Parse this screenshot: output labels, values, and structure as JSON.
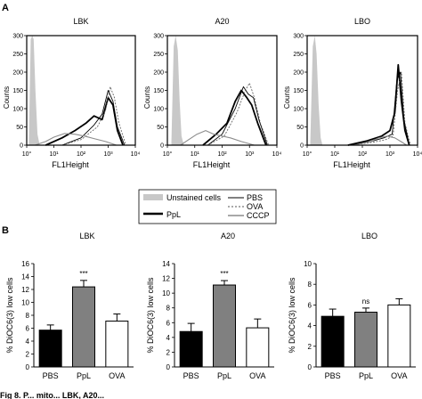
{
  "panels": [
    {
      "letter": "A"
    },
    {
      "letter": "B"
    }
  ],
  "legend": {
    "unstained": "Unstained cells",
    "ppl": "PpL",
    "pbs": "PBS",
    "ova": "OVA",
    "cccp": "CCCP"
  },
  "caption": "Fig 8. P... mito... LBK, A20...",
  "chart_data": [
    {
      "type": "line",
      "panel": "A",
      "title": "LBK",
      "xlabel": "FL1Height",
      "ylabel": "Counts",
      "xscale": "log",
      "xlim": [
        1,
        10000
      ],
      "ylim": [
        0,
        300
      ],
      "x_ticks": [
        "10°",
        "10¹",
        "10²",
        "10³",
        "10⁴"
      ],
      "y_ticks": [
        "0",
        "50",
        "100",
        "150",
        "200",
        "250",
        "300"
      ],
      "series": [
        {
          "name": "Unstained cells",
          "style": "filled-gray",
          "x": [
            1.2,
            1.4,
            1.6,
            1.8,
            2.1,
            2.5,
            3
          ],
          "y": [
            5,
            290,
            300,
            290,
            150,
            30,
            0
          ]
        },
        {
          "name": "PpL",
          "style": "thick-black",
          "x": [
            5,
            20,
            60,
            150,
            300,
            600,
            1000,
            1500,
            2200,
            3500
          ],
          "y": [
            0,
            20,
            40,
            60,
            80,
            70,
            130,
            110,
            40,
            0
          ]
        },
        {
          "name": "PBS",
          "style": "thin-black",
          "x": [
            20,
            100,
            300,
            600,
            1000,
            1500,
            2200,
            4000
          ],
          "y": [
            0,
            20,
            55,
            85,
            150,
            120,
            50,
            0
          ]
        },
        {
          "name": "OVA",
          "style": "dashed",
          "x": [
            20,
            100,
            400,
            800,
            1200,
            1700,
            2500,
            4500
          ],
          "y": [
            0,
            15,
            50,
            95,
            160,
            130,
            60,
            0
          ]
        },
        {
          "name": "CCCP",
          "style": "thin-gray",
          "x": [
            2,
            5,
            10,
            25,
            60,
            150,
            300,
            800,
            2000
          ],
          "y": [
            0,
            10,
            22,
            32,
            30,
            24,
            18,
            10,
            0
          ]
        }
      ]
    },
    {
      "type": "line",
      "panel": "A",
      "title": "A20",
      "xlabel": "FL1Height",
      "ylabel": "Counts",
      "xscale": "log",
      "xlim": [
        1,
        10000
      ],
      "ylim": [
        0,
        300
      ],
      "x_ticks": [
        "10°",
        "10¹",
        "10²",
        "10³",
        "10⁴"
      ],
      "y_ticks": [
        "0",
        "50",
        "100",
        "150",
        "200",
        "250",
        "300"
      ],
      "series": [
        {
          "name": "Unstained cells",
          "style": "filled-gray",
          "x": [
            1.4,
            1.7,
            2,
            2.4,
            2.8,
            3.3,
            4
          ],
          "y": [
            5,
            270,
            300,
            260,
            120,
            25,
            0
          ]
        },
        {
          "name": "PpL",
          "style": "thick-black",
          "x": [
            20,
            60,
            150,
            300,
            500,
            800,
            1200,
            2000,
            4000
          ],
          "y": [
            0,
            30,
            60,
            120,
            150,
            130,
            110,
            60,
            0
          ]
        },
        {
          "name": "PBS",
          "style": "thin-black",
          "x": [
            30,
            100,
            300,
            600,
            900,
            1400,
            2200,
            4500
          ],
          "y": [
            0,
            30,
            100,
            160,
            140,
            130,
            70,
            0
          ]
        },
        {
          "name": "OVA",
          "style": "dashed",
          "x": [
            30,
            120,
            350,
            700,
            1000,
            1500,
            2500,
            5000
          ],
          "y": [
            0,
            25,
            90,
            150,
            170,
            130,
            60,
            0
          ]
        },
        {
          "name": "CCCP",
          "style": "thin-gray",
          "x": [
            3,
            6,
            12,
            25,
            50,
            100,
            200,
            500,
            1500
          ],
          "y": [
            0,
            15,
            30,
            40,
            30,
            25,
            20,
            10,
            0
          ]
        }
      ]
    },
    {
      "type": "line",
      "panel": "A",
      "title": "LBO",
      "xlabel": "FL1Height",
      "ylabel": "Counts",
      "xscale": "log",
      "xlim": [
        1,
        10000
      ],
      "ylim": [
        0,
        300
      ],
      "x_ticks": [
        "10°",
        "10¹",
        "10²",
        "10³",
        "10⁴"
      ],
      "y_ticks": [
        "0",
        "50",
        "100",
        "150",
        "200",
        "250",
        "300"
      ],
      "series": [
        {
          "name": "Unstained cells",
          "style": "filled-gray",
          "x": [
            1.3,
            1.6,
            1.9,
            2.2,
            2.6,
            3.1,
            3.6
          ],
          "y": [
            5,
            270,
            300,
            250,
            110,
            20,
            0
          ]
        },
        {
          "name": "PpL",
          "style": "thick-black",
          "x": [
            30,
            150,
            500,
            1000,
            1500,
            2000,
            2600,
            3500,
            5000
          ],
          "y": [
            0,
            12,
            25,
            40,
            90,
            220,
            120,
            40,
            0
          ]
        },
        {
          "name": "PBS",
          "style": "thin-black",
          "x": [
            30,
            200,
            600,
            1200,
            1800,
            2400,
            3200,
            5000
          ],
          "y": [
            0,
            10,
            20,
            30,
            180,
            200,
            70,
            0
          ]
        },
        {
          "name": "OVA",
          "style": "dashed",
          "x": [
            40,
            250,
            700,
            1300,
            1900,
            2600,
            3500,
            5500
          ],
          "y": [
            0,
            8,
            15,
            25,
            150,
            200,
            60,
            0
          ]
        },
        {
          "name": "CCCP",
          "style": "thin-gray",
          "x": [
            50,
            100,
            200,
            400,
            800,
            1500,
            2500,
            4000
          ],
          "y": [
            0,
            5,
            10,
            20,
            25,
            20,
            10,
            0
          ]
        }
      ]
    },
    {
      "type": "bar",
      "panel": "B",
      "title": "LBK",
      "ylabel": "% DiOC6(3) low cells",
      "categories": [
        "PBS",
        "PpL",
        "OVA"
      ],
      "values": [
        5.7,
        12.4,
        7.1
      ],
      "errors": [
        0.8,
        1.0,
        1.1
      ],
      "colors": [
        "#000000",
        "#808080",
        "#ffffff"
      ],
      "annotations": [
        "",
        "***",
        ""
      ],
      "ylim": [
        0,
        16
      ],
      "y_ticks": [
        "0",
        "2",
        "4",
        "6",
        "8",
        "10",
        "12",
        "14",
        "16"
      ]
    },
    {
      "type": "bar",
      "panel": "B",
      "title": "A20",
      "ylabel": "% DiOC6(3) low cells",
      "categories": [
        "PBS",
        "PpL",
        "OVA"
      ],
      "values": [
        4.8,
        11.1,
        5.3
      ],
      "errors": [
        1.1,
        0.6,
        1.2
      ],
      "colors": [
        "#000000",
        "#808080",
        "#ffffff"
      ],
      "annotations": [
        "",
        "***",
        ""
      ],
      "ylim": [
        0,
        14
      ],
      "y_ticks": [
        "0",
        "2",
        "4",
        "6",
        "8",
        "10",
        "12",
        "14"
      ]
    },
    {
      "type": "bar",
      "panel": "B",
      "title": "LBO",
      "ylabel": "% DiOC6(3) low cells",
      "categories": [
        "PBS",
        "PpL",
        "OVA"
      ],
      "values": [
        4.9,
        5.3,
        6.0
      ],
      "errors": [
        0.7,
        0.4,
        0.6
      ],
      "colors": [
        "#000000",
        "#808080",
        "#ffffff"
      ],
      "annotations": [
        "",
        "ns",
        ""
      ],
      "ylim": [
        0,
        10
      ],
      "y_ticks": [
        "0",
        "2",
        "4",
        "6",
        "8",
        "10"
      ]
    }
  ]
}
